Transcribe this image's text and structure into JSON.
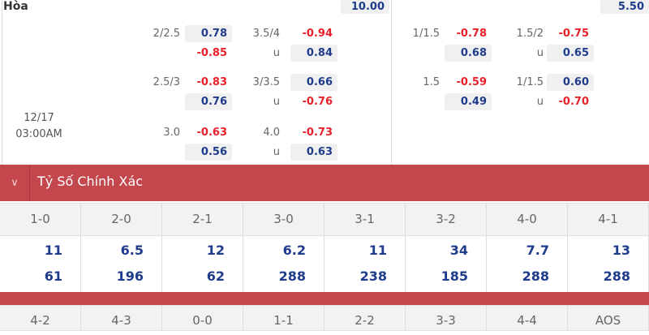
{
  "header": {
    "title": "Hòa",
    "top_values": [
      "10.00",
      "5.50"
    ]
  },
  "match": {
    "date": "12/17",
    "time": "03:00AM"
  },
  "left": [
    {
      "a_line": "2/2.5",
      "a_top": "0.78",
      "a_bot": "-0.85",
      "b_line": "3.5/4",
      "b_top": "-0.94",
      "b_u": "u",
      "b_bot": "0.84"
    },
    {
      "a_line": "2.5/3",
      "a_top": "-0.83",
      "a_bot": "0.76",
      "b_line": "3/3.5",
      "b_top": "0.66",
      "b_u": "u",
      "b_bot": "-0.76"
    },
    {
      "a_line": "3.0",
      "a_top": "-0.63",
      "a_bot": "0.56",
      "b_line": "4.0",
      "b_top": "-0.73",
      "b_u": "u",
      "b_bot": "0.63"
    }
  ],
  "right": [
    {
      "a_line": "1/1.5",
      "a_top": "-0.78",
      "a_bot": "0.68",
      "b_line": "1.5/2",
      "b_top": "-0.75",
      "b_u": "u",
      "b_bot": "0.65"
    },
    {
      "a_line": "1.5",
      "a_top": "-0.59",
      "a_bot": "0.49",
      "b_line": "1/1.5",
      "b_top": "0.60",
      "b_u": "u",
      "b_bot": "-0.70"
    }
  ],
  "section": {
    "title": "Tỷ Số Chính Xác",
    "chevron": "chevron-down-icon"
  },
  "scores": [
    "1-0",
    "2-0",
    "2-1",
    "3-0",
    "3-1",
    "3-2",
    "4-0",
    "4-1"
  ],
  "odds_top": [
    "11",
    "6.5",
    "12",
    "6.2",
    "11",
    "34",
    "7.7",
    "13"
  ],
  "odds_bot": [
    "61",
    "196",
    "62",
    "288",
    "238",
    "185",
    "288",
    "288"
  ],
  "scores2": [
    "4-2",
    "4-3",
    "0-0",
    "1-1",
    "2-2",
    "3-3",
    "4-4",
    "AOS"
  ]
}
